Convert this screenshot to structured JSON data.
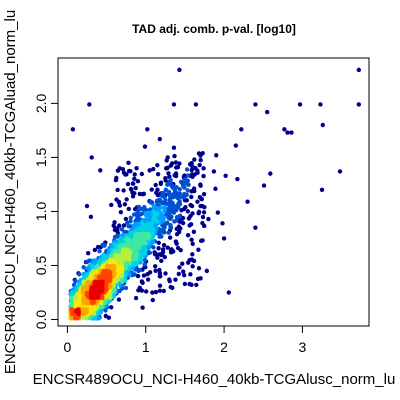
{
  "chart_data": {
    "type": "scatter",
    "title": "TAD adj. comb. p-val. [log10]",
    "xlabel": "ENCSR489OCU_NCI-H460_40kb-TCGAlusc_norm_lu",
    "ylabel": "ENCSR489OCU_NCI-H460_40kb-TCGAluad_norm_lu",
    "xlim": [
      -0.12,
      3.85
    ],
    "ylim": [
      -0.06,
      2.42
    ],
    "x_ticks": [
      "0",
      "1",
      "2",
      "3"
    ],
    "y_ticks": [
      "0.0",
      "0.5",
      "1.0",
      "1.5",
      "2.0"
    ],
    "grid": false,
    "legend": "none",
    "density_colors": [
      "#00008B",
      "#0050D0",
      "#00A0FF",
      "#00D2E6",
      "#40E8A0",
      "#B4F03C",
      "#FFE600",
      "#FFA500",
      "#FF4500",
      "#E60000"
    ],
    "sparse_points": [
      [
        3.72,
        2.31
      ],
      [
        3.72,
        1.99
      ],
      [
        2.97,
        1.99
      ],
      [
        3.23,
        1.99
      ],
      [
        2.4,
        1.99
      ],
      [
        1.43,
        2.31
      ],
      [
        0.28,
        1.99
      ],
      [
        1.36,
        1.99
      ],
      [
        1.64,
        1.99
      ],
      [
        2.55,
        1.92
      ],
      [
        3.26,
        1.8
      ],
      [
        2.77,
        1.76
      ],
      [
        2.81,
        1.73
      ],
      [
        2.86,
        1.73
      ],
      [
        0.07,
        1.76
      ],
      [
        2.22,
        1.76
      ],
      [
        3.48,
        1.37
      ],
      [
        3.25,
        1.2
      ],
      [
        2.51,
        1.24
      ],
      [
        2.15,
        1.61
      ],
      [
        1.9,
        1.52
      ],
      [
        1.02,
        1.76
      ],
      [
        1.18,
        1.67
      ],
      [
        1.36,
        1.59
      ],
      [
        1.62,
        1.48
      ],
      [
        1.41,
        1.41
      ],
      [
        1.89,
        1.21
      ],
      [
        2.3,
        1.09
      ],
      [
        2.4,
        0.85
      ],
      [
        1.8,
        0.93
      ],
      [
        1.66,
        1.09
      ],
      [
        1.98,
        0.89
      ],
      [
        0.99,
        1.6
      ],
      [
        1.05,
        1.38
      ],
      [
        1.28,
        1.5
      ],
      [
        2.0,
        0.75
      ],
      [
        1.78,
        0.45
      ],
      [
        2.06,
        0.25
      ],
      [
        1.49,
        0.41
      ],
      [
        1.56,
        0.55
      ],
      [
        0.31,
        1.5
      ],
      [
        0.62,
        1.29
      ],
      [
        0.42,
        1.38
      ],
      [
        1.15,
        1.2
      ],
      [
        1.25,
        1.15
      ],
      [
        1.47,
        1.26
      ],
      [
        1.7,
        1.05
      ],
      [
        1.56,
        0.87
      ],
      [
        1.4,
        0.79
      ],
      [
        1.6,
        0.7
      ],
      [
        1.33,
        0.65
      ],
      [
        1.18,
        0.4
      ],
      [
        1.32,
        0.3
      ],
      [
        0.96,
        0.11
      ],
      [
        1.09,
        0.18
      ],
      [
        0.25,
        1.05
      ],
      [
        0.3,
        0.95
      ],
      [
        0.56,
        1.06
      ],
      [
        0.78,
        1.45
      ],
      [
        1.87,
        1.37
      ],
      [
        2.59,
        1.35
      ],
      [
        2.17,
        1.3
      ],
      [
        2.02,
        1.33
      ],
      [
        1.92,
        0.99
      ],
      [
        0.9,
        1.28
      ]
    ]
  }
}
